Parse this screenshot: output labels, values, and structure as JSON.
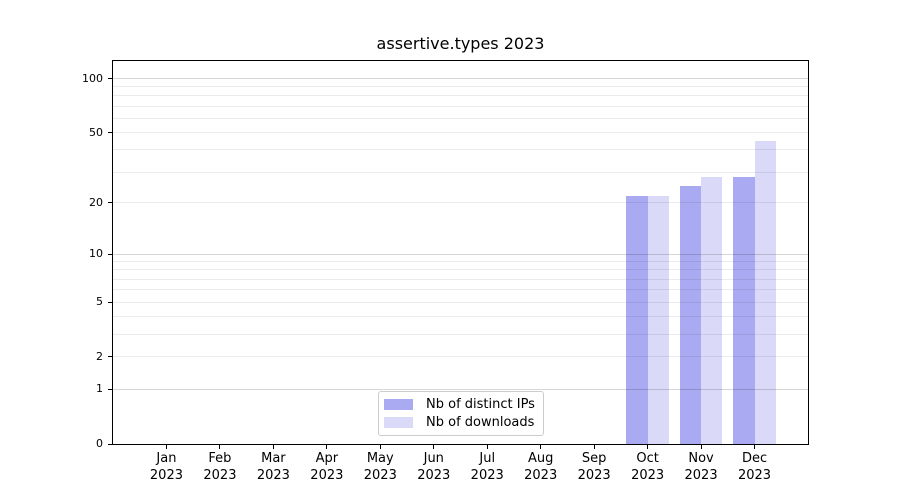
{
  "title": "assertive.types 2023",
  "chart_data": {
    "type": "bar",
    "title": "assertive.types 2023",
    "categories": [
      "Jan",
      "Feb",
      "Mar",
      "Apr",
      "May",
      "Jun",
      "Jul",
      "Aug",
      "Sep",
      "Oct",
      "Nov",
      "Dec"
    ],
    "x_label_year": "2023",
    "series": [
      {
        "name": "Nb of distinct IPs",
        "color": "#aaaaf2",
        "values": [
          0,
          0,
          0,
          0,
          0,
          0,
          0,
          0,
          0,
          22,
          25,
          28
        ]
      },
      {
        "name": "Nb of downloads",
        "color": "#dadaf8",
        "values": [
          0,
          0,
          0,
          0,
          0,
          0,
          0,
          0,
          0,
          22,
          28,
          45
        ]
      }
    ],
    "yscale": "log1p",
    "ylim": [
      0,
      125
    ],
    "y_tick_values": [
      0,
      1,
      2,
      5,
      10,
      20,
      50,
      100
    ],
    "y_tick_labels": [
      "0",
      "1",
      "2",
      "5",
      "10",
      "20",
      "50",
      "100"
    ],
    "grid_major_values": [
      1,
      10,
      100
    ],
    "grid_minor_values": [
      2,
      3,
      4,
      5,
      6,
      7,
      8,
      9,
      20,
      30,
      40,
      50,
      60,
      70,
      80,
      90
    ],
    "grid": "horizontal",
    "legend_position": "lower center"
  },
  "legend": {
    "items": [
      {
        "label": "Nb of distinct IPs",
        "color": "#aaaaf2"
      },
      {
        "label": "Nb of downloads",
        "color": "#dadaf8"
      }
    ]
  },
  "colors": {
    "bar_distinct_ips": "#aaaaf2",
    "bar_downloads": "#dadaf8",
    "grid_major": "rgba(0,0,0,0.16)",
    "grid_minor": "rgba(0,0,0,0.08)",
    "legend_border": "#cccccc",
    "axis": "#000000",
    "background": "#ffffff"
  }
}
